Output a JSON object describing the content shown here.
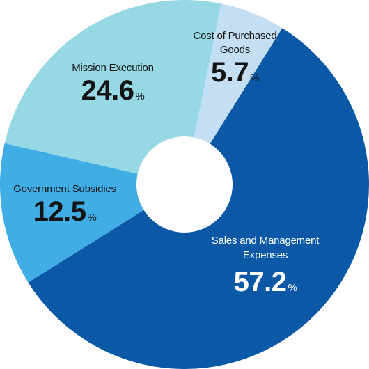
{
  "chart_data": {
    "type": "pie",
    "variant": "donut",
    "unit": "%",
    "slices": [
      {
        "label": "Sales and Management Expenses",
        "value": 57.2,
        "value_text": "57.2",
        "color": "#0b58a6"
      },
      {
        "label": "Government Subsidies",
        "value": 12.5,
        "value_text": "12.5",
        "color": "#41ade5"
      },
      {
        "label": "Mission Execution",
        "value": 24.6,
        "value_text": "24.6",
        "color": "#96d9e5"
      },
      {
        "label": "Cost of Purchased Goods",
        "value": 5.7,
        "value_text": "5.7",
        "color": "#c4def3"
      }
    ]
  }
}
